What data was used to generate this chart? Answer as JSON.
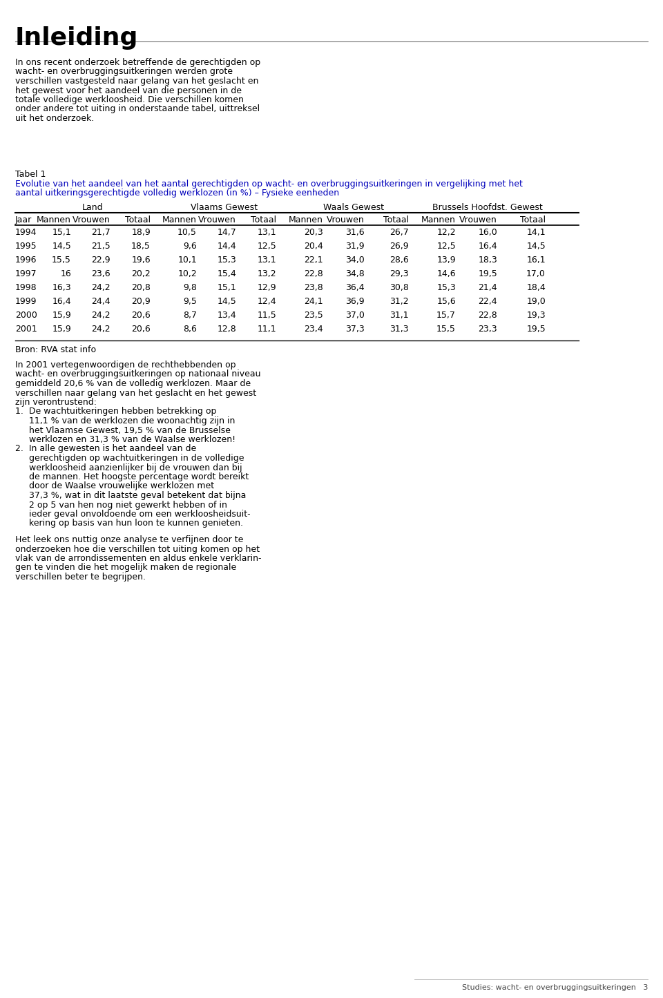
{
  "title_main": "Inleiding",
  "intro_text": "In ons recent onderzoek betreffende de gerechtigden op\nwacht- en overbruggingsuitkeringen werden grote\nverschillen vastgesteld naar gelang van het geslacht en\nhet gewest voor het aandeel van die personen in de\ntotale volledige werkloosheid. Die verschillen komen\nonder andere tot uiting in onderstaande tabel, uittreksel\nuit het onderzoek.",
  "table_label": "Tabel 1",
  "table_title_line1": "Evolutie van het aandeel van het aantal gerechtigden op wacht- en overbruggingsuitkeringen in vergelijking met het",
  "table_title_line2": "aantal uitkeringsgerechtigde volledig werklozen (in %) – Fysieke eenheden",
  "col_groups": [
    "Land",
    "Vlaams Gewest",
    "Waals Gewest",
    "Brussels Hoofdst. Gewest"
  ],
  "col_headers": [
    "Jaar",
    "Mannen",
    "Vrouwen",
    "Totaal",
    "Mannen",
    "Vrouwen",
    "Totaal",
    "Mannen",
    "Vrouwen",
    "Totaal",
    "Mannen",
    "Vrouwen",
    "Totaal"
  ],
  "table_data": [
    [
      "1994",
      "15,1",
      "21,7",
      "18,9",
      "10,5",
      "14,7",
      "13,1",
      "20,3",
      "31,6",
      "26,7",
      "12,2",
      "16,0",
      "14,1"
    ],
    [
      "1995",
      "14,5",
      "21,5",
      "18,5",
      "9,6",
      "14,4",
      "12,5",
      "20,4",
      "31,9",
      "26,9",
      "12,5",
      "16,4",
      "14,5"
    ],
    [
      "1996",
      "15,5",
      "22,9",
      "19,6",
      "10,1",
      "15,3",
      "13,1",
      "22,1",
      "34,0",
      "28,6",
      "13,9",
      "18,3",
      "16,1"
    ],
    [
      "1997",
      "16",
      "23,6",
      "20,2",
      "10,2",
      "15,4",
      "13,2",
      "22,8",
      "34,8",
      "29,3",
      "14,6",
      "19,5",
      "17,0"
    ],
    [
      "1998",
      "16,3",
      "24,2",
      "20,8",
      "9,8",
      "15,1",
      "12,9",
      "23,8",
      "36,4",
      "30,8",
      "15,3",
      "21,4",
      "18,4"
    ],
    [
      "1999",
      "16,4",
      "24,4",
      "20,9",
      "9,5",
      "14,5",
      "12,4",
      "24,1",
      "36,9",
      "31,2",
      "15,6",
      "22,4",
      "19,0"
    ],
    [
      "2000",
      "15,9",
      "24,2",
      "20,6",
      "8,7",
      "13,4",
      "11,5",
      "23,5",
      "37,0",
      "31,1",
      "15,7",
      "22,8",
      "19,3"
    ],
    [
      "2001",
      "15,9",
      "24,2",
      "20,6",
      "8,6",
      "12,8",
      "11,1",
      "23,4",
      "37,3",
      "31,3",
      "15,5",
      "23,3",
      "19,5"
    ]
  ],
  "bron_text": "Bron: RVA stat info",
  "body_text_after_lines": [
    "In 2001 vertegenwoordigen de rechthebbenden op",
    "wacht- en overbruggingsuitkeringen op nationaal niveau",
    "gemiddeld 20,6 % van de volledig werklozen. Maar de",
    "verschillen naar gelang van het geslacht en het gewest",
    "zijn verontrustend:",
    "1.  De wachtuitkeringen hebben betrekking op",
    "     11,1 % van de werklozen die woonachtig zijn in",
    "     het Vlaamse Gewest, 19,5 % van de Brusselse",
    "     werklozen en 31,3 % van de Waalse werklozen!",
    "2.  In alle gewesten is het aandeel van de",
    "     gerechtigden op wachtuitkeringen in de volledige",
    "     werkloosheid aanzienlijker bij de vrouwen dan bij",
    "     de mannen. Het hoogste percentage wordt bereikt",
    "     door de Waalse vrouwelijke werklozen met",
    "     37,3 %, wat in dit laatste geval betekent dat bijna",
    "     2 op 5 van hen nog niet gewerkt hebben of in",
    "     ieder geval onvoldoende om een werkloosheidsuit-",
    "     kering op basis van hun loon te kunnen genieten."
  ],
  "footer_text_lines": [
    "Het leek ons nuttig onze analyse te verfijnen door te",
    "onderzoeken hoe die verschillen tot uiting komen op het",
    "vlak van de arrondissementen en aldus enkele verklarin-",
    "gen te vinden die het mogelijk maken de regionale",
    "verschillen beter te begrijpen."
  ],
  "page_footer": "Studies: wacht- en overbruggingsuitkeringen   3",
  "bg_color": "#ffffff",
  "text_color": "#000000",
  "title_color": "#000000",
  "table_title_color": "#0000bb"
}
